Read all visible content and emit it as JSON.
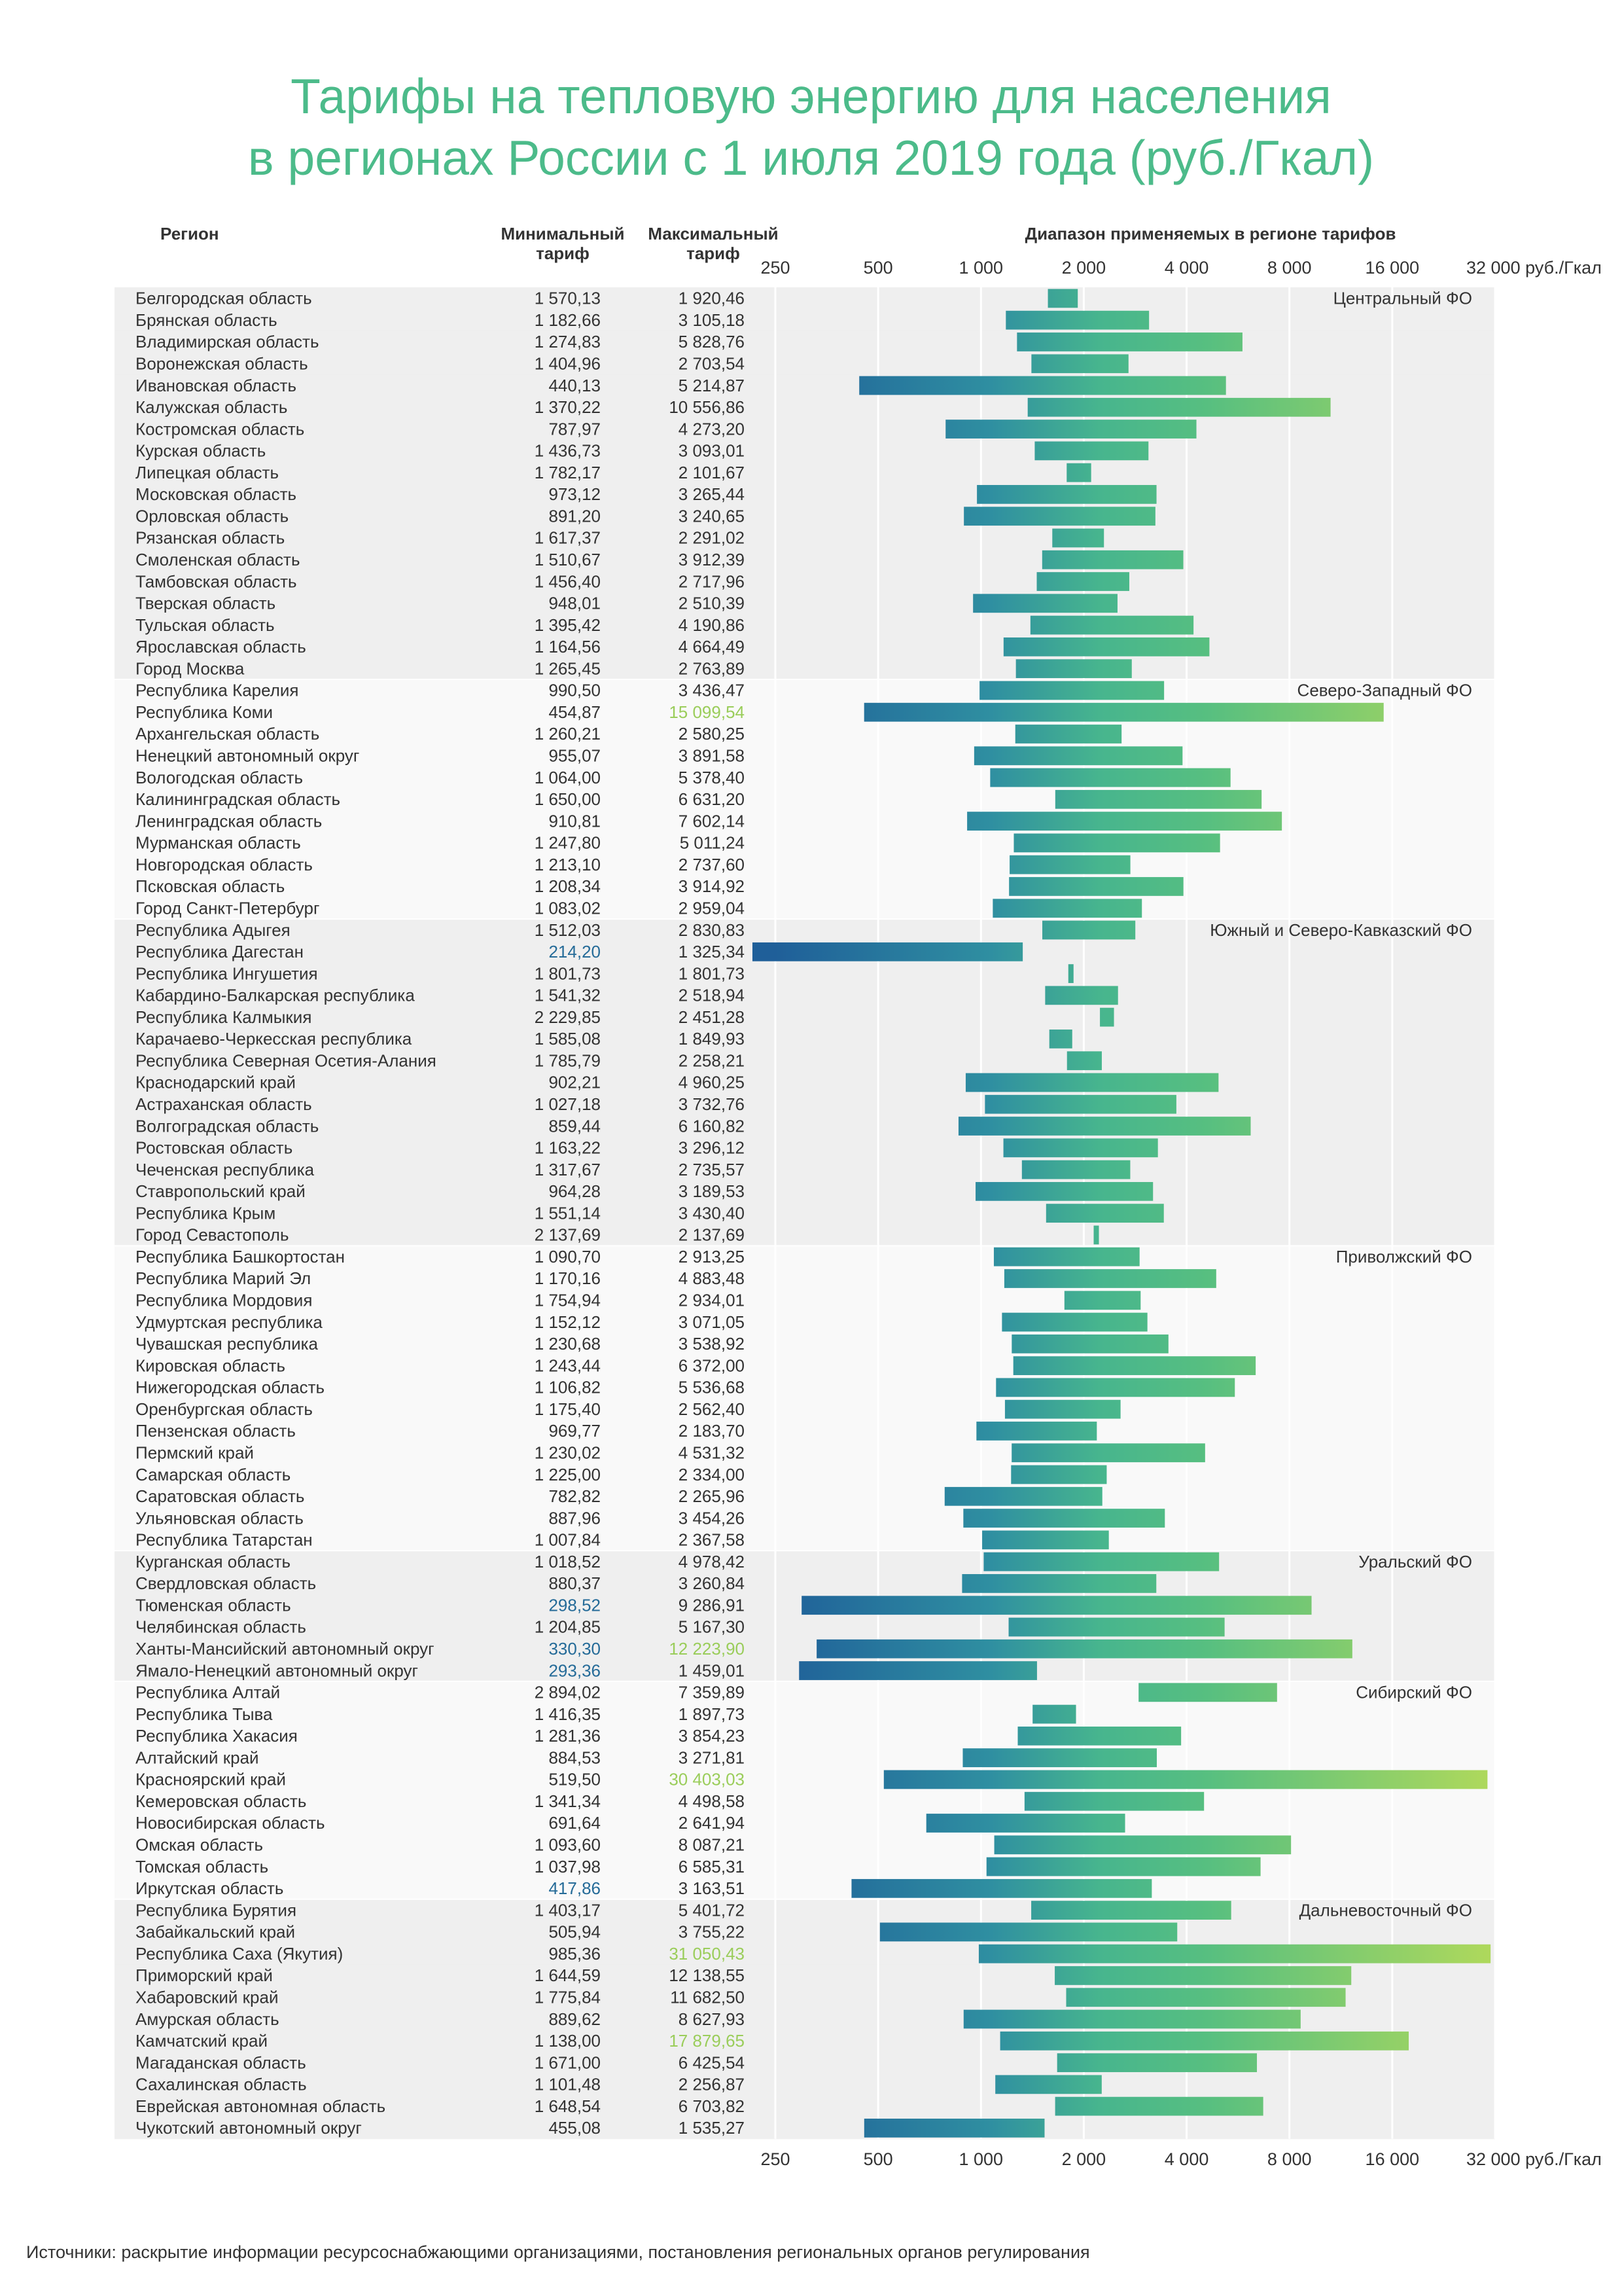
{
  "title_line1": "Тарифы на тепловую энергию для населения",
  "title_line2": "в регионах России с 1 июля 2019 года (руб./Гкал)",
  "headers": {
    "region": "Регион",
    "min": "Минимальный тариф",
    "max": "Максимальный тариф",
    "range": "Диапазон применяемых в регионе тарифов"
  },
  "source": "Источники: раскрытие информации ресурсоснабжающими организациями, постановления региональных органов регулирования",
  "colors": {
    "title": "#4cbb8a",
    "bar_dark": "#256b98",
    "bar_mid": "#49b887",
    "bar_light": "#a6d65e",
    "low_value": "#256b98",
    "high_value": "#9acd5a",
    "row_a": "#efefef",
    "row_b": "#f9f9f9"
  },
  "chart_data": {
    "type": "range-bar",
    "xscale": "log2",
    "xlim": [
      250,
      32000
    ],
    "ticks": [
      250,
      500,
      1000,
      2000,
      4000,
      8000,
      16000,
      32000
    ],
    "tick_labels": [
      "250",
      "500",
      "1 000",
      "2 000",
      "4 000",
      "8 000",
      "16 000",
      "32 000 руб./Гкал"
    ],
    "low_threshold": 420,
    "high_threshold": 12200,
    "groups": [
      {
        "name": "Центральный ФО",
        "rows": [
          {
            "region": "Белгородская область",
            "min": 1570.13,
            "max": 1920.46,
            "min_label": "1 570,13",
            "max_label": "1 920,46"
          },
          {
            "region": "Брянская область",
            "min": 1182.66,
            "max": 3105.18,
            "min_label": "1 182,66",
            "max_label": "3 105,18"
          },
          {
            "region": "Владимирская область",
            "min": 1274.83,
            "max": 5828.76,
            "min_label": "1 274,83",
            "max_label": "5 828,76"
          },
          {
            "region": "Воронежская область",
            "min": 1404.96,
            "max": 2703.54,
            "min_label": "1 404,96",
            "max_label": "2 703,54"
          },
          {
            "region": "Ивановская область",
            "min": 440.13,
            "max": 5214.87,
            "min_label": "440,13",
            "max_label": "5 214,87"
          },
          {
            "region": "Калужская область",
            "min": 1370.22,
            "max": 10556.86,
            "min_label": "1 370,22",
            "max_label": "10 556,86"
          },
          {
            "region": "Костромская область",
            "min": 787.97,
            "max": 4273.2,
            "min_label": "787,97",
            "max_label": "4 273,20"
          },
          {
            "region": "Курская область",
            "min": 1436.73,
            "max": 3093.01,
            "min_label": "1 436,73",
            "max_label": "3 093,01"
          },
          {
            "region": "Липецкая область",
            "min": 1782.17,
            "max": 2101.67,
            "min_label": "1 782,17",
            "max_label": "2 101,67"
          },
          {
            "region": "Московская область",
            "min": 973.12,
            "max": 3265.44,
            "min_label": "973,12",
            "max_label": "3 265,44"
          },
          {
            "region": "Орловская область",
            "min": 891.2,
            "max": 3240.65,
            "min_label": "891,20",
            "max_label": "3 240,65"
          },
          {
            "region": "Рязанская область",
            "min": 1617.37,
            "max": 2291.02,
            "min_label": "1 617,37",
            "max_label": "2 291,02"
          },
          {
            "region": "Смоленская область",
            "min": 1510.67,
            "max": 3912.39,
            "min_label": "1 510,67",
            "max_label": "3 912,39"
          },
          {
            "region": "Тамбовская область",
            "min": 1456.4,
            "max": 2717.96,
            "min_label": "1 456,40",
            "max_label": "2 717,96"
          },
          {
            "region": "Тверская область",
            "min": 948.01,
            "max": 2510.39,
            "min_label": "948,01",
            "max_label": "2 510,39"
          },
          {
            "region": "Тульская область",
            "min": 1395.42,
            "max": 4190.86,
            "min_label": "1 395,42",
            "max_label": "4 190,86"
          },
          {
            "region": "Ярославская область",
            "min": 1164.56,
            "max": 4664.49,
            "min_label": "1 164,56",
            "max_label": "4 664,49"
          },
          {
            "region": "Город Москва",
            "min": 1265.45,
            "max": 2763.89,
            "min_label": "1 265,45",
            "max_label": "2 763,89"
          }
        ]
      },
      {
        "name": "Северо-Западный ФО",
        "rows": [
          {
            "region": "Республика Карелия",
            "min": 990.5,
            "max": 3436.47,
            "min_label": "990,50",
            "max_label": "3 436,47"
          },
          {
            "region": "Республика Коми",
            "min": 454.87,
            "max": 15099.54,
            "min_label": "454,87",
            "max_label": "15 099,54"
          },
          {
            "region": "Архангельская область",
            "min": 1260.21,
            "max": 2580.25,
            "min_label": "1 260,21",
            "max_label": "2 580,25"
          },
          {
            "region": "Ненецкий автономный округ",
            "min": 955.07,
            "max": 3891.58,
            "min_label": "955,07",
            "max_label": "3 891,58"
          },
          {
            "region": "Вологодская область",
            "min": 1064.0,
            "max": 5378.4,
            "min_label": "1 064,00",
            "max_label": "5 378,40"
          },
          {
            "region": "Калининградская область",
            "min": 1650.0,
            "max": 6631.2,
            "min_label": "1 650,00",
            "max_label": "6 631,20"
          },
          {
            "region": "Ленинградская область",
            "min": 910.81,
            "max": 7602.14,
            "min_label": "910,81",
            "max_label": "7 602,14"
          },
          {
            "region": "Мурманская область",
            "min": 1247.8,
            "max": 5011.24,
            "min_label": "1 247,80",
            "max_label": "5 011,24"
          },
          {
            "region": "Новгородская область",
            "min": 1213.1,
            "max": 2737.6,
            "min_label": "1 213,10",
            "max_label": "2 737,60"
          },
          {
            "region": "Псковская область",
            "min": 1208.34,
            "max": 3914.92,
            "min_label": "1 208,34",
            "max_label": "3 914,92"
          },
          {
            "region": "Город Санкт-Петербург",
            "min": 1083.02,
            "max": 2959.04,
            "min_label": "1 083,02",
            "max_label": "2 959,04"
          }
        ]
      },
      {
        "name": "Южный и Северо-Кавказский ФО",
        "rows": [
          {
            "region": "Республика Адыгея",
            "min": 1512.03,
            "max": 2830.83,
            "min_label": "1 512,03",
            "max_label": "2 830,83"
          },
          {
            "region": "Республика Дагестан",
            "min": 214.2,
            "max": 1325.34,
            "min_label": "214,20",
            "max_label": "1 325,34"
          },
          {
            "region": "Республика Ингушетия",
            "min": 1801.73,
            "max": 1801.73,
            "min_label": "1 801,73",
            "max_label": "1 801,73"
          },
          {
            "region": "Кабардино-Балкарская республика",
            "min": 1541.32,
            "max": 2518.94,
            "min_label": "1 541,32",
            "max_label": "2 518,94"
          },
          {
            "region": "Республика Калмыкия",
            "min": 2229.85,
            "max": 2451.28,
            "min_label": "2 229,85",
            "max_label": "2 451,28"
          },
          {
            "region": "Карачаево-Черкесская республика",
            "min": 1585.08,
            "max": 1849.93,
            "min_label": "1 585,08",
            "max_label": "1 849,93"
          },
          {
            "region": "Республика Северная Осетия-Алания",
            "min": 1785.79,
            "max": 2258.21,
            "min_label": "1 785,79",
            "max_label": "2 258,21"
          },
          {
            "region": "Краснодарский край",
            "min": 902.21,
            "max": 4960.25,
            "min_label": "902,21",
            "max_label": "4 960,25"
          },
          {
            "region": "Астраханская область",
            "min": 1027.18,
            "max": 3732.76,
            "min_label": "1 027,18",
            "max_label": "3 732,76"
          },
          {
            "region": "Волгоградская область",
            "min": 859.44,
            "max": 6160.82,
            "min_label": "859,44",
            "max_label": "6 160,82"
          },
          {
            "region": "Ростовская область",
            "min": 1163.22,
            "max": 3296.12,
            "min_label": "1 163,22",
            "max_label": "3 296,12"
          },
          {
            "region": "Чеченская республика",
            "min": 1317.67,
            "max": 2735.57,
            "min_label": "1 317,67",
            "max_label": "2 735,57"
          },
          {
            "region": "Ставропольский край",
            "min": 964.28,
            "max": 3189.53,
            "min_label": "964,28",
            "max_label": "3 189,53"
          },
          {
            "region": "Республика Крым",
            "min": 1551.14,
            "max": 3430.4,
            "min_label": "1 551,14",
            "max_label": "3 430,40"
          },
          {
            "region": "Город Севастополь",
            "min": 2137.69,
            "max": 2137.69,
            "min_label": "2 137,69",
            "max_label": "2 137,69"
          }
        ]
      },
      {
        "name": "Приволжский ФО",
        "rows": [
          {
            "region": "Республика Башкортостан",
            "min": 1090.7,
            "max": 2913.25,
            "min_label": "1 090,70",
            "max_label": "2 913,25"
          },
          {
            "region": "Республика Марий Эл",
            "min": 1170.16,
            "max": 4883.48,
            "min_label": "1 170,16",
            "max_label": "4 883,48"
          },
          {
            "region": "Республика Мордовия",
            "min": 1754.94,
            "max": 2934.01,
            "min_label": "1 754,94",
            "max_label": "2 934,01"
          },
          {
            "region": "Удмуртская республика",
            "min": 1152.12,
            "max": 3071.05,
            "min_label": "1 152,12",
            "max_label": "3 071,05"
          },
          {
            "region": "Чувашская республика",
            "min": 1230.68,
            "max": 3538.92,
            "min_label": "1 230,68",
            "max_label": "3 538,92"
          },
          {
            "region": "Кировская область",
            "min": 1243.44,
            "max": 6372.0,
            "min_label": "1 243,44",
            "max_label": "6 372,00"
          },
          {
            "region": "Нижегородская область",
            "min": 1106.82,
            "max": 5536.68,
            "min_label": "1 106,82",
            "max_label": "5 536,68"
          },
          {
            "region": "Оренбургская область",
            "min": 1175.4,
            "max": 2562.4,
            "min_label": "1 175,40",
            "max_label": "2 562,40"
          },
          {
            "region": "Пензенская область",
            "min": 969.77,
            "max": 2183.7,
            "min_label": "969,77",
            "max_label": "2 183,70"
          },
          {
            "region": "Пермский край",
            "min": 1230.02,
            "max": 4531.32,
            "min_label": "1 230,02",
            "max_label": "4 531,32"
          },
          {
            "region": "Самарская область",
            "min": 1225.0,
            "max": 2334.0,
            "min_label": "1 225,00",
            "max_label": "2 334,00"
          },
          {
            "region": "Саратовская область",
            "min": 782.82,
            "max": 2265.96,
            "min_label": "782,82",
            "max_label": "2 265,96"
          },
          {
            "region": "Ульяновская область",
            "min": 887.96,
            "max": 3454.26,
            "min_label": "887,96",
            "max_label": "3 454,26"
          },
          {
            "region": "Республика Татарстан",
            "min": 1007.84,
            "max": 2367.58,
            "min_label": "1 007,84",
            "max_label": "2 367,58"
          }
        ]
      },
      {
        "name": "Уральский ФО",
        "rows": [
          {
            "region": "Курганская область",
            "min": 1018.52,
            "max": 4978.42,
            "min_label": "1 018,52",
            "max_label": "4 978,42"
          },
          {
            "region": "Свердловская область",
            "min": 880.37,
            "max": 3260.84,
            "min_label": "880,37",
            "max_label": "3 260,84"
          },
          {
            "region": "Тюменская область",
            "min": 298.52,
            "max": 9286.91,
            "min_label": "298,52",
            "max_label": "9 286,91"
          },
          {
            "region": "Челябинская область",
            "min": 1204.85,
            "max": 5167.3,
            "min_label": "1 204,85",
            "max_label": "5 167,30"
          },
          {
            "region": "Ханты-Мансийский автономный округ",
            "min": 330.3,
            "max": 12223.9,
            "min_label": "330,30",
            "max_label": "12 223,90"
          },
          {
            "region": "Ямало-Ненецкий автономный округ",
            "min": 293.36,
            "max": 1459.01,
            "min_label": "293,36",
            "max_label": "1 459,01"
          }
        ]
      },
      {
        "name": "Сибирский ФО",
        "rows": [
          {
            "region": "Республика Алтай",
            "min": 2894.02,
            "max": 7359.89,
            "min_label": "2 894,02",
            "max_label": "7 359,89"
          },
          {
            "region": "Республика Тыва",
            "min": 1416.35,
            "max": 1897.73,
            "min_label": "1 416,35",
            "max_label": "1 897,73"
          },
          {
            "region": "Республика Хакасия",
            "min": 1281.36,
            "max": 3854.23,
            "min_label": "1 281,36",
            "max_label": "3 854,23"
          },
          {
            "region": "Алтайский край",
            "min": 884.53,
            "max": 3271.81,
            "min_label": "884,53",
            "max_label": "3 271,81"
          },
          {
            "region": "Красноярский край",
            "min": 519.5,
            "max": 30403.03,
            "min_label": "519,50",
            "max_label": "30 403,03"
          },
          {
            "region": "Кемеровская область",
            "min": 1341.34,
            "max": 4498.58,
            "min_label": "1 341,34",
            "max_label": "4 498,58"
          },
          {
            "region": "Новосибирская область",
            "min": 691.64,
            "max": 2641.94,
            "min_label": "691,64",
            "max_label": "2 641,94"
          },
          {
            "region": "Омская область",
            "min": 1093.6,
            "max": 8087.21,
            "min_label": "1 093,60",
            "max_label": "8 087,21"
          },
          {
            "region": "Томская область",
            "min": 1037.98,
            "max": 6585.31,
            "min_label": "1 037,98",
            "max_label": "6 585,31"
          },
          {
            "region": "Иркутская область",
            "min": 417.86,
            "max": 3163.51,
            "min_label": "417,86",
            "max_label": "3 163,51"
          }
        ]
      },
      {
        "name": "Дальневосточный ФО",
        "rows": [
          {
            "region": "Республика Бурятия",
            "min": 1403.17,
            "max": 5401.72,
            "min_label": "1 403,17",
            "max_label": "5 401,72"
          },
          {
            "region": "Забайкальский край",
            "min": 505.94,
            "max": 3755.22,
            "min_label": "505,94",
            "max_label": "3 755,22"
          },
          {
            "region": "Республика Саха (Якутия)",
            "min": 985.36,
            "max": 31050.43,
            "min_label": "985,36",
            "max_label": "31 050,43"
          },
          {
            "region": "Приморский край",
            "min": 1644.59,
            "max": 12138.55,
            "min_label": "1 644,59",
            "max_label": "12 138,55"
          },
          {
            "region": "Хабаровский край",
            "min": 1775.84,
            "max": 11682.5,
            "min_label": "1 775,84",
            "max_label": "11 682,50"
          },
          {
            "region": "Амурская область",
            "min": 889.62,
            "max": 8627.93,
            "min_label": "889,62",
            "max_label": "8 627,93"
          },
          {
            "region": "Камчатский край",
            "min": 1138.0,
            "max": 17879.65,
            "min_label": "1 138,00",
            "max_label": "17 879,65"
          },
          {
            "region": "Магаданская область",
            "min": 1671.0,
            "max": 6425.54,
            "min_label": "1 671,00",
            "max_label": "6 425,54"
          },
          {
            "region": "Сахалинская область",
            "min": 1101.48,
            "max": 2256.87,
            "min_label": "1 101,48",
            "max_label": "2 256,87"
          },
          {
            "region": "Еврейская автономная область",
            "min": 1648.54,
            "max": 6703.82,
            "min_label": "1 648,54",
            "max_label": "6 703,82"
          },
          {
            "region": "Чукотский автономный округ",
            "min": 455.08,
            "max": 1535.27,
            "min_label": "455,08",
            "max_label": "1 535,27"
          }
        ]
      }
    ]
  }
}
